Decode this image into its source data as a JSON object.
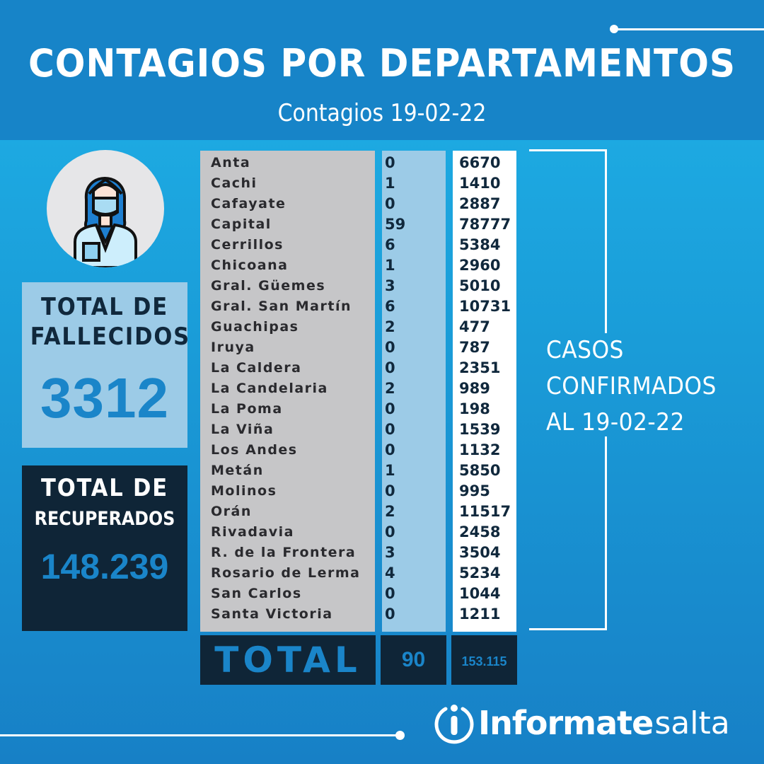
{
  "header": {
    "title": "CONTAGIOS POR DEPARTAMENTOS",
    "subtitle": "Contagios 19-02-22"
  },
  "stats": {
    "fallecidos": {
      "label": "TOTAL DE FALLECIDOS",
      "value": "3312"
    },
    "recuperados": {
      "label_line1": "TOTAL DE",
      "label_line2": "RECUPERADOS",
      "value": "148.239"
    }
  },
  "table": {
    "rows": [
      {
        "departamento": "Anta",
        "nuevos": "0",
        "total": "6670"
      },
      {
        "departamento": "Cachi",
        "nuevos": "1",
        "total": "1410"
      },
      {
        "departamento": "Cafayate",
        "nuevos": "0",
        "total": "2887"
      },
      {
        "departamento": "Capital",
        "nuevos": "59",
        "total": "78777"
      },
      {
        "departamento": "Cerrillos",
        "nuevos": "6",
        "total": "5384"
      },
      {
        "departamento": "Chicoana",
        "nuevos": "1",
        "total": "2960"
      },
      {
        "departamento": "Gral. Güemes",
        "nuevos": "3",
        "total": "5010"
      },
      {
        "departamento": "Gral. San Martín",
        "nuevos": "6",
        "total": "10731"
      },
      {
        "departamento": "Guachipas",
        "nuevos": "2",
        "total": "477"
      },
      {
        "departamento": "Iruya",
        "nuevos": "0",
        "total": "787"
      },
      {
        "departamento": "La Caldera",
        "nuevos": "0",
        "total": "2351"
      },
      {
        "departamento": "La Candelaria",
        "nuevos": "2",
        "total": "989"
      },
      {
        "departamento": "La Poma",
        "nuevos": "0",
        "total": "198"
      },
      {
        "departamento": "La Viña",
        "nuevos": "0",
        "total": "1539"
      },
      {
        "departamento": "Los Andes",
        "nuevos": "0",
        "total": "1132"
      },
      {
        "departamento": "Metán",
        "nuevos": "1",
        "total": "5850"
      },
      {
        "departamento": "Molinos",
        "nuevos": "0",
        "total": "995"
      },
      {
        "departamento": "Orán",
        "nuevos": "2",
        "total": "11517"
      },
      {
        "departamento": "Rivadavia",
        "nuevos": "0",
        "total": "2458"
      },
      {
        "departamento": "R. de la Frontera",
        "nuevos": "3",
        "total": "3504"
      },
      {
        "departamento": "Rosario de Lerma",
        "nuevos": "4",
        "total": "5234"
      },
      {
        "departamento": "San Carlos",
        "nuevos": "0",
        "total": "1044"
      },
      {
        "departamento": "Santa Victoria",
        "nuevos": "0",
        "total": "1211"
      }
    ],
    "totals": {
      "label": "TOTAL",
      "nuevos": "90",
      "total": "153.115"
    }
  },
  "side_note": {
    "line1": "CASOS",
    "line2": "CONFIRMADOS",
    "line3": "AL 19-02-22"
  },
  "footer": {
    "logo_icon": "info-circle-icon",
    "brand_bold": "Informate",
    "brand_light": "salta"
  },
  "colors": {
    "header_bg": "#1784c8",
    "dark_navy": "#0f2537",
    "light_blue": "#9ccbe7",
    "accent_blue": "#1a85c9",
    "grey": "#c6c6c8"
  }
}
